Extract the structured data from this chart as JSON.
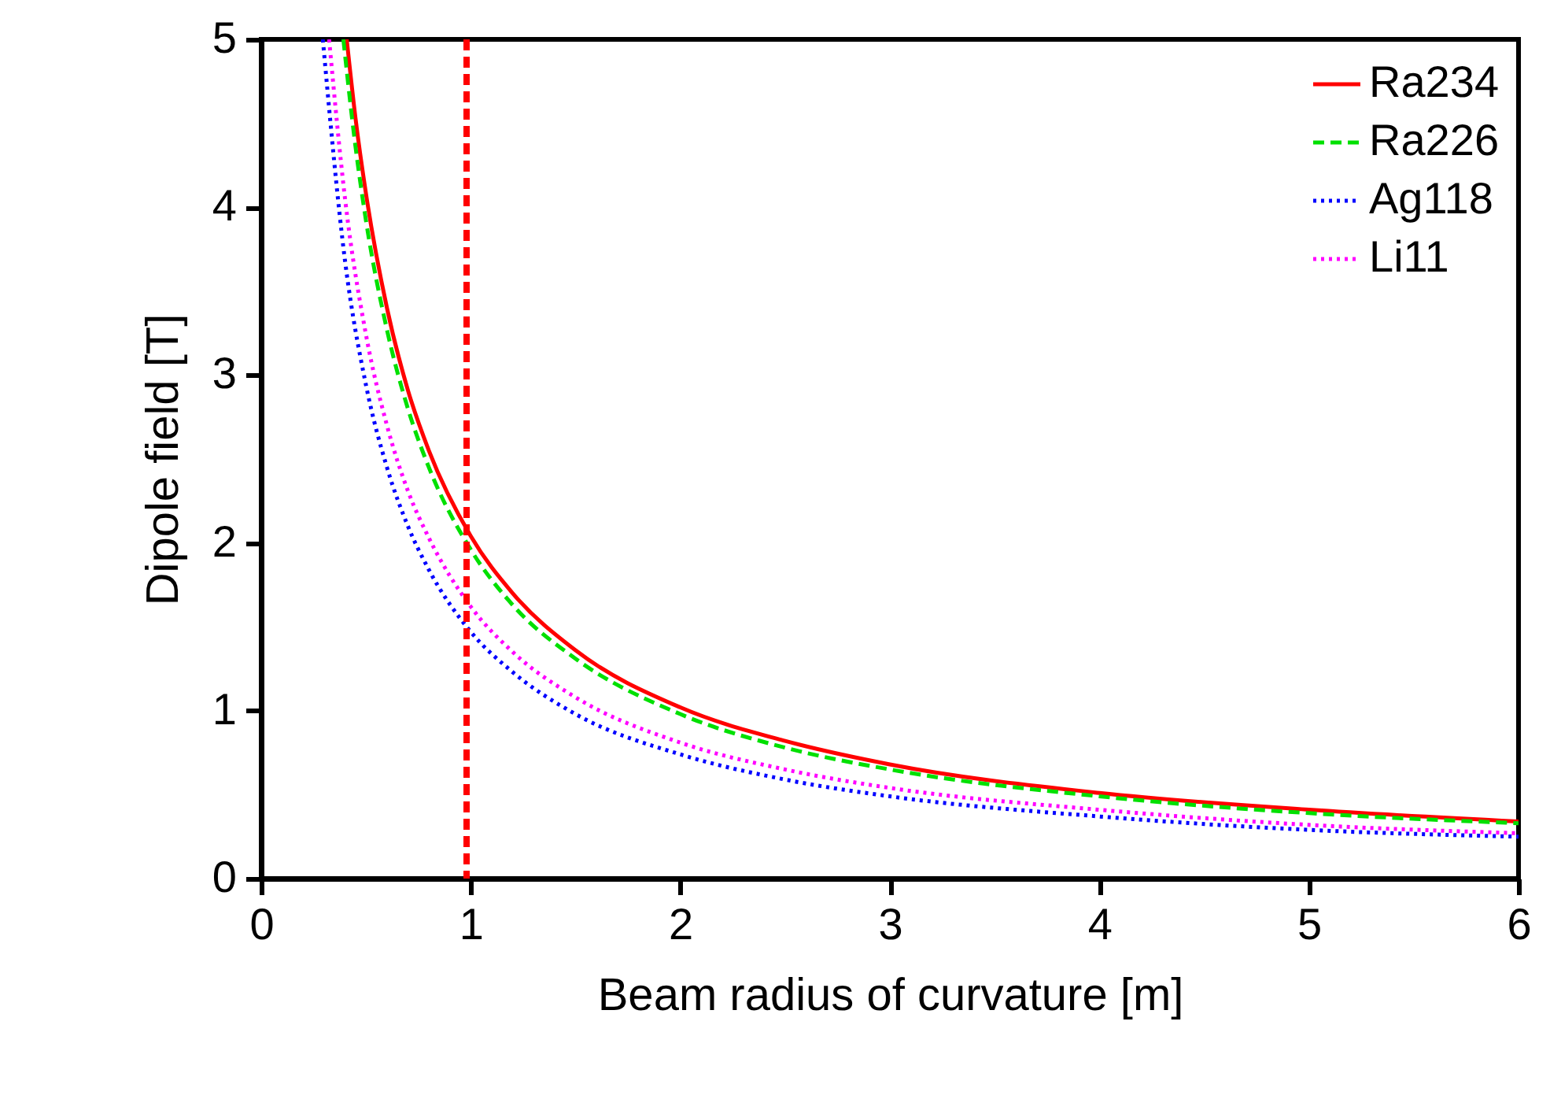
{
  "chart_data": {
    "type": "line",
    "xlabel": "Beam radius of curvature [m]",
    "ylabel": "Dipole field [T]",
    "xlim": [
      0,
      6
    ],
    "xticks": [
      0,
      1,
      2,
      3,
      4,
      5,
      6
    ],
    "ylim": [
      0,
      5
    ],
    "yticks": [
      0,
      1,
      2,
      3,
      4,
      5
    ],
    "grid": false,
    "legend": "top right",
    "series": [
      {
        "name": "Ra234",
        "color": "#ff0000",
        "line_style": "solid",
        "x": [
          0.408,
          0.45,
          0.5,
          0.6,
          0.7,
          0.8,
          1,
          1.2,
          1.5,
          2,
          2.5,
          3,
          4,
          5,
          6
        ],
        "values": [
          5,
          4.53,
          4.08,
          3.4,
          2.91,
          2.55,
          2.04,
          1.7,
          1.36,
          1.02,
          0.82,
          0.68,
          0.51,
          0.41,
          0.34
        ]
      },
      {
        "name": "Ra226",
        "color": "#00e000",
        "line_style": "dashed",
        "x": [
          0.392,
          0.45,
          0.5,
          0.6,
          0.7,
          0.8,
          1,
          1.2,
          1.5,
          2,
          2.5,
          3,
          4,
          5,
          6
        ],
        "values": [
          5,
          4.36,
          3.92,
          3.27,
          2.8,
          2.45,
          1.96,
          1.63,
          1.31,
          0.98,
          0.78,
          0.65,
          0.49,
          0.39,
          0.33
        ]
      },
      {
        "name": "Ag118",
        "color": "#0000ff",
        "line_style": "dotted",
        "x": [
          0.294,
          0.4,
          0.5,
          0.6,
          0.7,
          0.8,
          1,
          1.2,
          1.5,
          2,
          2.5,
          3,
          4,
          5,
          6
        ],
        "values": [
          5,
          3.68,
          2.94,
          2.45,
          2.1,
          1.84,
          1.47,
          1.23,
          0.98,
          0.74,
          0.59,
          0.49,
          0.37,
          0.29,
          0.25
        ]
      },
      {
        "name": "Li11",
        "color": "#ff00ff",
        "line_style": "dotted",
        "x": [
          0.324,
          0.4,
          0.5,
          0.6,
          0.7,
          0.8,
          1,
          1.2,
          1.5,
          2,
          2.5,
          3,
          4,
          5,
          6
        ],
        "values": [
          5,
          4.05,
          3.24,
          2.7,
          2.31,
          2.03,
          1.62,
          1.35,
          1.08,
          0.81,
          0.65,
          0.54,
          0.41,
          0.32,
          0.27
        ]
      }
    ],
    "ref_lines": [
      {
        "axis": "x",
        "value": 0.98,
        "color": "#ff0000",
        "line_style": "dashed"
      }
    ]
  }
}
